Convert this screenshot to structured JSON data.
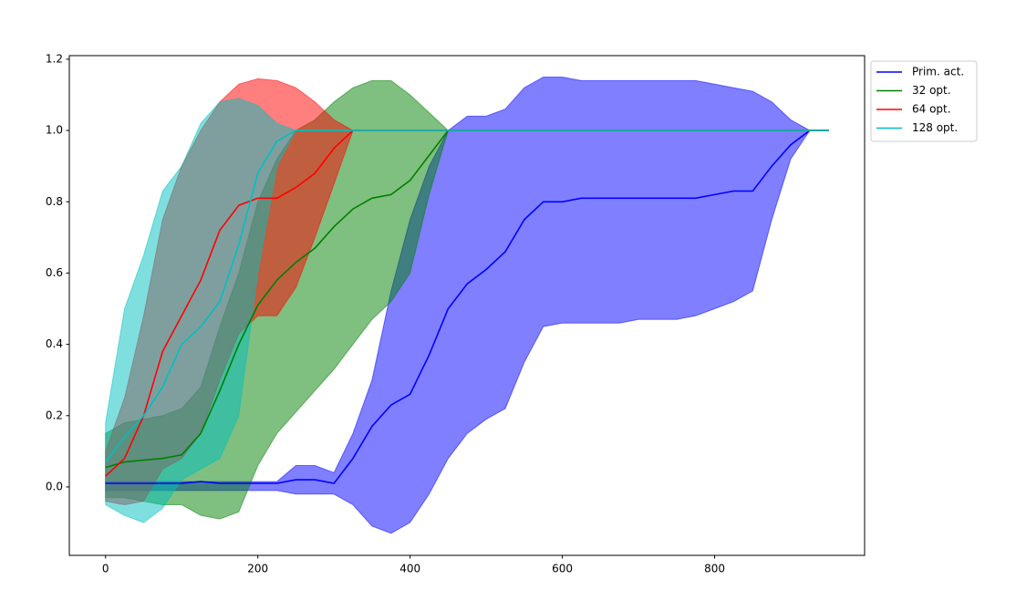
{
  "chart_data": {
    "type": "line",
    "x": [
      0,
      25,
      50,
      75,
      100,
      125,
      150,
      175,
      200,
      225,
      250,
      275,
      300,
      325,
      350,
      375,
      400,
      425,
      450,
      475,
      500,
      525,
      550,
      575,
      600,
      625,
      650,
      675,
      700,
      725,
      750,
      775,
      800,
      825,
      850,
      875,
      900,
      925,
      950
    ],
    "series": [
      {
        "name": "Prim. act.",
        "color": "#0000ff",
        "values": [
          0.01,
          0.01,
          0.01,
          0.01,
          0.01,
          0.015,
          0.01,
          0.01,
          0.01,
          0.01,
          0.02,
          0.02,
          0.01,
          0.08,
          0.17,
          0.23,
          0.26,
          0.37,
          0.5,
          0.57,
          0.61,
          0.66,
          0.75,
          0.8,
          0.8,
          0.81,
          0.81,
          0.81,
          0.81,
          0.81,
          0.81,
          0.81,
          0.82,
          0.83,
          0.83,
          0.9,
          0.96,
          1.0,
          1.0
        ],
        "upper": [
          0.015,
          0.015,
          0.015,
          0.015,
          0.015,
          0.015,
          0.015,
          0.015,
          0.015,
          0.015,
          0.06,
          0.06,
          0.04,
          0.15,
          0.3,
          0.55,
          0.75,
          0.9,
          1.0,
          1.04,
          1.04,
          1.06,
          1.12,
          1.15,
          1.15,
          1.14,
          1.14,
          1.14,
          1.14,
          1.14,
          1.14,
          1.14,
          1.13,
          1.12,
          1.11,
          1.08,
          1.03,
          1.0,
          1.0
        ],
        "lower": [
          -0.01,
          -0.01,
          -0.01,
          -0.01,
          -0.01,
          -0.01,
          -0.01,
          -0.01,
          -0.01,
          -0.01,
          -0.02,
          -0.02,
          -0.02,
          -0.05,
          -0.11,
          -0.13,
          -0.1,
          -0.02,
          0.08,
          0.15,
          0.19,
          0.22,
          0.35,
          0.45,
          0.46,
          0.46,
          0.46,
          0.46,
          0.47,
          0.47,
          0.47,
          0.48,
          0.5,
          0.52,
          0.55,
          0.75,
          0.92,
          1.0,
          1.0
        ]
      },
      {
        "name": "32 opt.",
        "color": "#008000",
        "values": [
          0.055,
          0.07,
          0.075,
          0.08,
          0.09,
          0.15,
          0.27,
          0.4,
          0.51,
          0.58,
          0.63,
          0.67,
          0.73,
          0.78,
          0.81,
          0.82,
          0.86,
          0.93,
          1.0,
          1,
          1,
          1,
          1,
          1,
          1,
          1,
          1,
          1,
          1,
          1,
          1,
          1,
          1,
          1,
          1,
          1,
          1,
          1,
          1
        ],
        "upper": [
          0.15,
          0.18,
          0.19,
          0.2,
          0.22,
          0.28,
          0.45,
          0.6,
          0.8,
          0.92,
          1.0,
          1.03,
          1.08,
          1.12,
          1.14,
          1.14,
          1.1,
          1.05,
          1.0,
          1,
          1,
          1,
          1,
          1,
          1,
          1,
          1,
          1,
          1,
          1,
          1,
          1,
          1,
          1,
          1,
          1,
          1,
          1,
          1
        ],
        "lower": [
          -0.03,
          -0.03,
          -0.04,
          -0.05,
          -0.05,
          -0.08,
          -0.09,
          -0.07,
          0.06,
          0.15,
          0.21,
          0.27,
          0.33,
          0.4,
          0.47,
          0.52,
          0.6,
          0.82,
          1.0,
          1,
          1,
          1,
          1,
          1,
          1,
          1,
          1,
          1,
          1,
          1,
          1,
          1,
          1,
          1,
          1,
          1,
          1,
          1,
          1
        ]
      },
      {
        "name": "64 opt.",
        "color": "#ff0000",
        "values": [
          0.03,
          0.08,
          0.2,
          0.38,
          0.48,
          0.58,
          0.72,
          0.79,
          0.81,
          0.81,
          0.84,
          0.88,
          0.95,
          1.0,
          1,
          1,
          1,
          1,
          1,
          1,
          1,
          1,
          1,
          1,
          1,
          1,
          1,
          1,
          1,
          1,
          1,
          1,
          1,
          1,
          1,
          1,
          1,
          1,
          1
        ],
        "upper": [
          0.1,
          0.25,
          0.48,
          0.75,
          0.9,
          1.0,
          1.08,
          1.13,
          1.145,
          1.14,
          1.12,
          1.08,
          1.03,
          1.0,
          1,
          1,
          1,
          1,
          1,
          1,
          1,
          1,
          1,
          1,
          1,
          1,
          1,
          1,
          1,
          1,
          1,
          1,
          1,
          1,
          1,
          1,
          1,
          1,
          1
        ],
        "lower": [
          -0.04,
          -0.05,
          -0.04,
          0.05,
          0.08,
          0.15,
          0.3,
          0.43,
          0.48,
          0.48,
          0.56,
          0.7,
          0.85,
          1.0,
          1,
          1,
          1,
          1,
          1,
          1,
          1,
          1,
          1,
          1,
          1,
          1,
          1,
          1,
          1,
          1,
          1,
          1,
          1,
          1,
          1,
          1,
          1,
          1,
          1
        ]
      },
      {
        "name": "128 opt.",
        "color": "#00bfbf",
        "values": [
          0.07,
          0.14,
          0.2,
          0.28,
          0.4,
          0.45,
          0.52,
          0.68,
          0.88,
          0.97,
          1.0,
          1,
          1,
          1,
          1,
          1,
          1,
          1,
          1,
          1,
          1,
          1,
          1,
          1,
          1,
          1,
          1,
          1,
          1,
          1,
          1,
          1,
          1,
          1,
          1,
          1,
          1,
          1,
          1
        ],
        "upper": [
          0.18,
          0.5,
          0.65,
          0.83,
          0.9,
          1.02,
          1.08,
          1.09,
          1.07,
          1.02,
          1.0,
          1,
          1,
          1,
          1,
          1,
          1,
          1,
          1,
          1,
          1,
          1,
          1,
          1,
          1,
          1,
          1,
          1,
          1,
          1,
          1,
          1,
          1,
          1,
          1,
          1,
          1,
          1,
          1
        ],
        "lower": [
          -0.05,
          -0.08,
          -0.1,
          -0.06,
          0.02,
          0.05,
          0.08,
          0.2,
          0.6,
          0.9,
          1.0,
          1,
          1,
          1,
          1,
          1,
          1,
          1,
          1,
          1,
          1,
          1,
          1,
          1,
          1,
          1,
          1,
          1,
          1,
          1,
          1,
          1,
          1,
          1,
          1,
          1,
          1,
          1,
          1
        ]
      }
    ],
    "xlim": [
      -47.6,
      997
    ],
    "ylim": [
      -0.192,
      1.21
    ],
    "xticks": [
      0,
      200,
      400,
      600,
      800
    ],
    "yticks": [
      {
        "value": 0,
        "label": "0.0"
      },
      0.2,
      0.4,
      0.6,
      0.8,
      {
        "value": 1,
        "label": "1.0"
      },
      1.2
    ],
    "legend": "outside-upper-right"
  }
}
